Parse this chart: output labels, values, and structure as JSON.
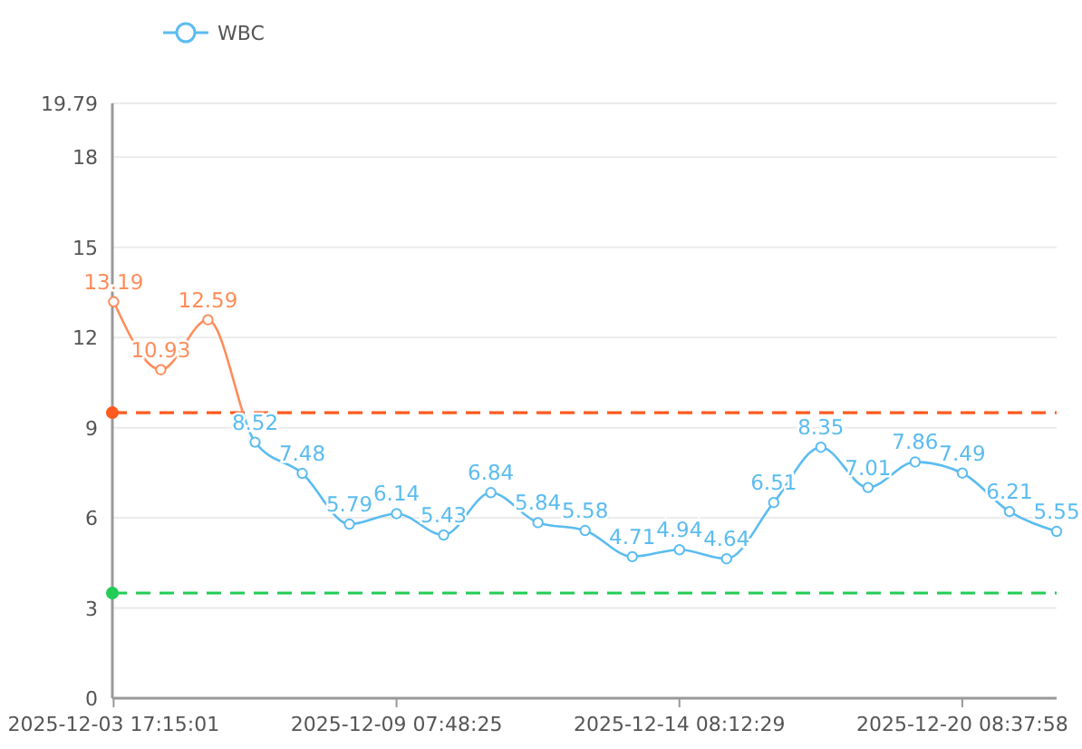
{
  "chart_data": {
    "type": "line",
    "legend": "top left",
    "grid": "y",
    "marker": "circle",
    "line_style": "solid",
    "categories": [
      "2025-12-03 17:15:01",
      null,
      null,
      null,
      null,
      null,
      "2025-12-09 07:48:25",
      null,
      null,
      null,
      null,
      null,
      "2025-12-14 08:12:29",
      null,
      null,
      null,
      null,
      null,
      "2025-12-20 08:37:58",
      null,
      null
    ],
    "series": [
      {
        "name": "WBC",
        "color": "#5bbcf0",
        "values": [
          13.19,
          10.93,
          12.59,
          8.52,
          7.48,
          5.79,
          6.14,
          5.43,
          6.84,
          5.84,
          5.58,
          4.71,
          4.94,
          4.64,
          6.51,
          8.35,
          7.01,
          7.86,
          7.49,
          6.21,
          5.55
        ],
        "colors": [
          "#ff8c5a",
          "#ff8c5a",
          "#ff8c5a",
          "#5bbcf0",
          "#5bbcf0",
          "#5bbcf0",
          "#5bbcf0",
          "#5bbcf0",
          "#5bbcf0",
          "#5bbcf0",
          "#5bbcf0",
          "#5bbcf0",
          "#5bbcf0",
          "#5bbcf0",
          "#5bbcf0",
          "#5bbcf0",
          "#5bbcf0",
          "#5bbcf0",
          "#5bbcf0",
          "#5bbcf0",
          "#5bbcf0"
        ]
      }
    ],
    "data_labels": true,
    "ylim": [
      0,
      19.79
    ],
    "yticks": [
      0,
      3,
      6,
      9,
      12,
      15,
      18,
      19.79
    ],
    "ref_lines": [
      {
        "axis": "y",
        "value": 9.5,
        "color": "#ff5a1f",
        "line_style": "dashed"
      },
      {
        "axis": "y",
        "value": 3.5,
        "color": "#22cc55",
        "line_style": "dashed"
      }
    ]
  }
}
